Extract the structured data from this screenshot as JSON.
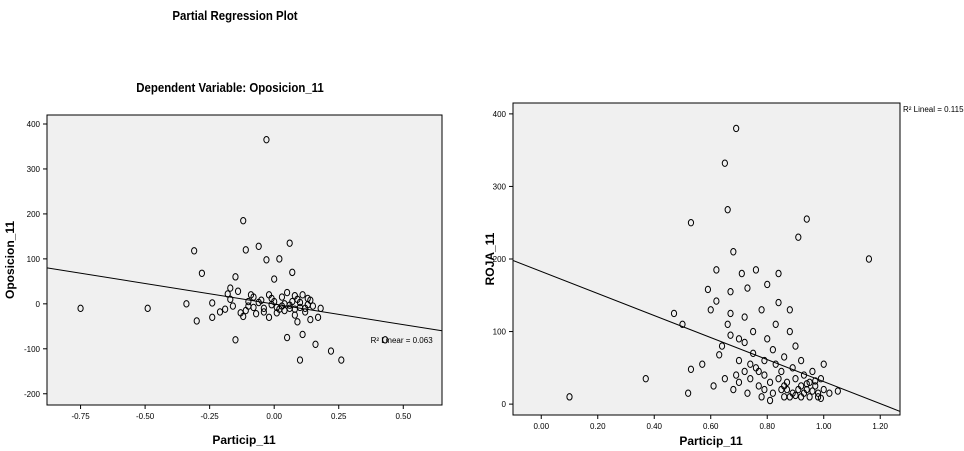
{
  "header": {
    "title": "Partial Regression Plot",
    "subtitle": "Dependent Variable: Oposicion_11"
  },
  "colors": {
    "plot_bg": "#f0f0f0",
    "frame": "#000000",
    "marker": "#000000",
    "line": "#000000"
  },
  "chart_data": [
    {
      "type": "scatter",
      "title": "Partial Regression Plot",
      "subtitle": "Dependent Variable: Oposicion_11",
      "xlabel": "Particip_11",
      "ylabel": "Oposicion_11",
      "xlim": [
        -0.88,
        0.65
      ],
      "ylim": [
        -225,
        420
      ],
      "xticks": [
        -0.75,
        -0.5,
        -0.25,
        0,
        0.25,
        0.5
      ],
      "xtick_labels": [
        "-0.75",
        "-0.50",
        "-0.25",
        "0.00",
        "0.25",
        "0.50"
      ],
      "yticks": [
        -200,
        -100,
        0,
        100,
        200,
        300,
        400
      ],
      "ytick_labels": [
        "-200",
        "-100",
        "0",
        "100",
        "200",
        "300",
        "400"
      ],
      "grid": false,
      "fit_line": {
        "x": [
          -0.88,
          0.65
        ],
        "y": [
          80,
          -60
        ]
      },
      "r2_label": "R² Linear = 0.063",
      "r2_pos": [
        0.42,
        -80
      ],
      "points": [
        [
          -0.75,
          -10
        ],
        [
          -0.49,
          -10
        ],
        [
          -0.34,
          0
        ],
        [
          -0.3,
          -38
        ],
        [
          -0.31,
          118
        ],
        [
          -0.28,
          68
        ],
        [
          -0.24,
          2
        ],
        [
          -0.24,
          -30
        ],
        [
          -0.21,
          -18
        ],
        [
          -0.19,
          -12
        ],
        [
          -0.17,
          35
        ],
        [
          -0.17,
          10
        ],
        [
          -0.16,
          -5
        ],
        [
          -0.15,
          -80
        ],
        [
          -0.15,
          60
        ],
        [
          -0.14,
          28
        ],
        [
          -0.13,
          -20
        ],
        [
          -0.12,
          185
        ],
        [
          -0.11,
          -15
        ],
        [
          -0.11,
          120
        ],
        [
          -0.1,
          5
        ],
        [
          -0.09,
          20
        ],
        [
          -0.08,
          -8
        ],
        [
          -0.07,
          -22
        ],
        [
          -0.06,
          128
        ],
        [
          -0.05,
          8
        ],
        [
          -0.04,
          -10
        ],
        [
          -0.03,
          98
        ],
        [
          -0.03,
          365
        ],
        [
          -0.02,
          20
        ],
        [
          -0.02,
          -30
        ],
        [
          -0.01,
          -2
        ],
        [
          0,
          5
        ],
        [
          0,
          55
        ],
        [
          0.01,
          -20
        ],
        [
          0.02,
          100
        ],
        [
          0.03,
          -5
        ],
        [
          0.03,
          15
        ],
        [
          0.04,
          -15
        ],
        [
          0.05,
          -75
        ],
        [
          0.05,
          25
        ],
        [
          0.06,
          135
        ],
        [
          0.06,
          -10
        ],
        [
          0.07,
          5
        ],
        [
          0.07,
          70
        ],
        [
          0.08,
          -25
        ],
        [
          0.08,
          18
        ],
        [
          0.09,
          -40
        ],
        [
          0.09,
          10
        ],
        [
          0.1,
          -125
        ],
        [
          0.1,
          -8
        ],
        [
          0.11,
          -68
        ],
        [
          0.11,
          20
        ],
        [
          0.12,
          -18
        ],
        [
          0.13,
          -2
        ],
        [
          0.14,
          -35
        ],
        [
          0.14,
          8
        ],
        [
          0.16,
          -90
        ],
        [
          0.17,
          -30
        ],
        [
          0.18,
          -10
        ],
        [
          0.22,
          -105
        ],
        [
          0.26,
          -125
        ],
        [
          0.43,
          -80
        ],
        [
          -0.1,
          -5
        ],
        [
          -0.06,
          3
        ],
        [
          -0.04,
          -18
        ],
        [
          -0.01,
          12
        ],
        [
          0.01,
          -8
        ],
        [
          0.04,
          0
        ],
        [
          0.06,
          -3
        ],
        [
          0.08,
          -12
        ],
        [
          0.1,
          3
        ],
        [
          0.12,
          -10
        ],
        [
          0.13,
          12
        ],
        [
          0.02,
          -12
        ],
        [
          -0.08,
          15
        ],
        [
          -0.12,
          -28
        ],
        [
          -0.18,
          22
        ],
        [
          0.15,
          -5
        ]
      ]
    },
    {
      "type": "scatter",
      "xlabel": "Particip_11",
      "ylabel": "ROJA_11",
      "xlim": [
        -0.1,
        1.27
      ],
      "ylim": [
        -15,
        415
      ],
      "xticks": [
        0,
        0.2,
        0.4,
        0.6,
        0.8,
        1.0,
        1.2
      ],
      "xtick_labels": [
        "0.00",
        "0.20",
        "0.40",
        "0.60",
        "0.80",
        "1.00",
        "1.20"
      ],
      "yticks": [
        0,
        100,
        200,
        300,
        400
      ],
      "ytick_labels": [
        "0",
        "100",
        "200",
        "300",
        "400"
      ],
      "grid": false,
      "fit_line": {
        "x": [
          -0.1,
          1.27
        ],
        "y": [
          198,
          -10
        ]
      },
      "r2_label": "R² Lineal = 0.115",
      "points": [
        [
          0.1,
          10
        ],
        [
          0.37,
          35
        ],
        [
          0.47,
          125
        ],
        [
          0.5,
          110
        ],
        [
          0.53,
          250
        ],
        [
          0.53,
          48
        ],
        [
          0.52,
          15
        ],
        [
          0.57,
          55
        ],
        [
          0.59,
          158
        ],
        [
          0.6,
          130
        ],
        [
          0.61,
          25
        ],
        [
          0.62,
          185
        ],
        [
          0.62,
          142
        ],
        [
          0.63,
          68
        ],
        [
          0.64,
          80
        ],
        [
          0.65,
          332
        ],
        [
          0.65,
          35
        ],
        [
          0.66,
          110
        ],
        [
          0.66,
          268
        ],
        [
          0.67,
          155
        ],
        [
          0.67,
          125
        ],
        [
          0.68,
          210
        ],
        [
          0.68,
          20
        ],
        [
          0.69,
          380
        ],
        [
          0.7,
          90
        ],
        [
          0.7,
          60
        ],
        [
          0.7,
          30
        ],
        [
          0.71,
          180
        ],
        [
          0.72,
          45
        ],
        [
          0.72,
          120
        ],
        [
          0.73,
          15
        ],
        [
          0.73,
          160
        ],
        [
          0.74,
          35
        ],
        [
          0.75,
          100
        ],
        [
          0.75,
          70
        ],
        [
          0.76,
          185
        ],
        [
          0.76,
          50
        ],
        [
          0.77,
          25
        ],
        [
          0.78,
          130
        ],
        [
          0.78,
          10
        ],
        [
          0.79,
          60
        ],
        [
          0.79,
          40
        ],
        [
          0.8,
          165
        ],
        [
          0.8,
          90
        ],
        [
          0.81,
          30
        ],
        [
          0.82,
          15
        ],
        [
          0.82,
          75
        ],
        [
          0.83,
          55
        ],
        [
          0.83,
          110
        ],
        [
          0.84,
          140
        ],
        [
          0.84,
          180
        ],
        [
          0.85,
          20
        ],
        [
          0.85,
          45
        ],
        [
          0.86,
          65
        ],
        [
          0.86,
          10
        ],
        [
          0.87,
          30
        ],
        [
          0.88,
          100
        ],
        [
          0.88,
          130
        ],
        [
          0.89,
          15
        ],
        [
          0.89,
          50
        ],
        [
          0.9,
          35
        ],
        [
          0.9,
          80
        ],
        [
          0.91,
          20
        ],
        [
          0.91,
          230
        ],
        [
          0.92,
          60
        ],
        [
          0.92,
          25
        ],
        [
          0.93,
          15
        ],
        [
          0.93,
          40
        ],
        [
          0.94,
          255
        ],
        [
          0.94,
          20
        ],
        [
          0.95,
          30
        ],
        [
          0.95,
          10
        ],
        [
          0.96,
          45
        ],
        [
          0.97,
          25
        ],
        [
          0.98,
          15
        ],
        [
          0.99,
          35
        ],
        [
          1.0,
          20
        ],
        [
          1.0,
          55
        ],
        [
          1.02,
          15
        ],
        [
          1.05,
          18
        ],
        [
          1.16,
          200
        ],
        [
          0.88,
          10
        ],
        [
          0.87,
          20
        ],
        [
          0.92,
          10
        ],
        [
          0.96,
          18
        ],
        [
          0.98,
          10
        ],
        [
          0.9,
          12
        ],
        [
          0.94,
          28
        ],
        [
          0.97,
          32
        ],
        [
          0.99,
          8
        ],
        [
          0.86,
          25
        ],
        [
          0.84,
          35
        ],
        [
          0.81,
          5
        ],
        [
          0.79,
          20
        ],
        [
          0.77,
          45
        ],
        [
          0.74,
          55
        ],
        [
          0.72,
          85
        ],
        [
          0.69,
          40
        ],
        [
          0.67,
          95
        ]
      ]
    }
  ]
}
